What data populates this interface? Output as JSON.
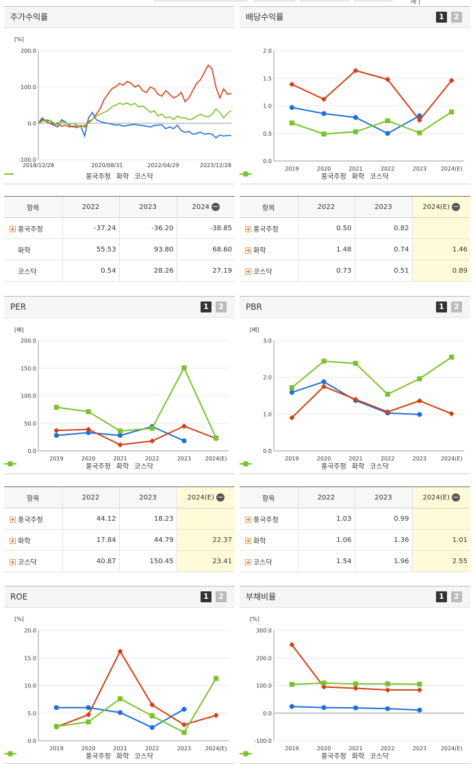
{
  "top_right_text": "페 |",
  "legend_names": [
    "풍국주정",
    "화학",
    "코스닥"
  ],
  "colors": {
    "blue": "#1e6fd9",
    "red": "#d33f12",
    "green": "#7ac22c"
  },
  "panels": {
    "stock_return": {
      "title": "주가수익률"
    },
    "dividend": {
      "title": "배당수익률",
      "btn1": "1",
      "btn2": "2"
    },
    "per": {
      "title": "PER",
      "btn1": "1",
      "btn2": "2"
    },
    "pbr": {
      "title": "PBR",
      "btn1": "1",
      "btn2": "2"
    },
    "roe": {
      "title": "ROE",
      "btn1": "1",
      "btn2": "2"
    },
    "debt": {
      "title": "부채비율",
      "btn1": "1",
      "btn2": "2"
    }
  },
  "tables": {
    "stock_return": {
      "header": [
        "항목",
        "2022",
        "2023",
        "2024"
      ],
      "rows": [
        {
          "name": "풍국주정",
          "plus": true,
          "values": [
            "-37.24",
            "-36.20",
            "-38.85"
          ]
        },
        {
          "name": "화학",
          "plus": false,
          "values": [
            "55.53",
            "93.80",
            "68.60"
          ]
        },
        {
          "name": "코스닥",
          "plus": false,
          "values": [
            "0.54",
            "28.26",
            "27.19"
          ]
        }
      ]
    },
    "dividend": {
      "header": [
        "항목",
        "2022",
        "2023",
        "2024(E)"
      ],
      "rows": [
        {
          "name": "풍국주정",
          "plus": true,
          "values": [
            "0.50",
            "0.82",
            ""
          ]
        },
        {
          "name": "화학",
          "plus": true,
          "values": [
            "1.48",
            "0.74",
            "1.46"
          ]
        },
        {
          "name": "코스닥",
          "plus": true,
          "values": [
            "0.73",
            "0.51",
            "0.89"
          ]
        }
      ]
    },
    "per": {
      "header": [
        "항목",
        "2022",
        "2023",
        "2024(E)"
      ],
      "rows": [
        {
          "name": "풍국주정",
          "plus": true,
          "values": [
            "44.12",
            "18.23",
            ""
          ]
        },
        {
          "name": "화학",
          "plus": true,
          "values": [
            "17.84",
            "44.79",
            "22.37"
          ]
        },
        {
          "name": "코스닥",
          "plus": true,
          "values": [
            "40.87",
            "150.45",
            "23.41"
          ]
        }
      ]
    },
    "pbr": {
      "header": [
        "항목",
        "2022",
        "2023",
        "2024(E)"
      ],
      "rows": [
        {
          "name": "풍국주정",
          "plus": true,
          "values": [
            "1.03",
            "0.99",
            ""
          ]
        },
        {
          "name": "화학",
          "plus": true,
          "values": [
            "1.06",
            "1.36",
            "1.01"
          ]
        },
        {
          "name": "코스닥",
          "plus": true,
          "values": [
            "1.54",
            "1.96",
            "2.55"
          ]
        }
      ]
    }
  },
  "chart_data": [
    {
      "id": "stock_return",
      "type": "line",
      "title": "주가수익률",
      "unit": "[%]",
      "ylim": [
        -100,
        200
      ],
      "yticks": [
        "200.0",
        "100.0",
        "0.0",
        "-100.0"
      ],
      "x_labels": [
        "2018/12/28",
        "2020/08/31",
        "2022/04/29",
        "2023/12/28"
      ],
      "x_range_index": [
        0,
        100
      ],
      "series": [
        {
          "name": "풍국주정",
          "color": "blue",
          "x": [
            0,
            2,
            4,
            6,
            8,
            10,
            12,
            14,
            16,
            18,
            20,
            22,
            24,
            26,
            28,
            30,
            32,
            34,
            36,
            38,
            40,
            42,
            44,
            46,
            48,
            50,
            52,
            54,
            56,
            58,
            60,
            62,
            64,
            66,
            68,
            70,
            72,
            74,
            76,
            78,
            80,
            82,
            84,
            86,
            88,
            90,
            92,
            94,
            96,
            98,
            100
          ],
          "y": [
            0,
            15,
            5,
            8,
            -5,
            -10,
            10,
            4,
            -5,
            -10,
            -6,
            -8,
            -35,
            15,
            30,
            10,
            5,
            2,
            0,
            -2,
            -5,
            -4,
            -8,
            -6,
            -4,
            -3,
            -5,
            -6,
            -8,
            -10,
            -6,
            -5,
            -4,
            -15,
            -10,
            -15,
            -5,
            -20,
            -25,
            -22,
            -30,
            -28,
            -24,
            -30,
            -28,
            -30,
            -40,
            -32,
            -35,
            -33,
            -34
          ]
        },
        {
          "name": "화학",
          "color": "red",
          "x": [
            0,
            2,
            4,
            6,
            8,
            10,
            12,
            14,
            16,
            18,
            20,
            22,
            24,
            26,
            28,
            30,
            32,
            34,
            36,
            38,
            40,
            42,
            44,
            46,
            48,
            50,
            52,
            54,
            56,
            58,
            60,
            62,
            64,
            66,
            68,
            70,
            72,
            74,
            76,
            78,
            80,
            82,
            84,
            86,
            88,
            90,
            92,
            94,
            96,
            98,
            100
          ],
          "y": [
            0,
            10,
            5,
            0,
            -5,
            2,
            -8,
            -5,
            -10,
            -8,
            -12,
            -6,
            -10,
            5,
            10,
            25,
            40,
            65,
            80,
            95,
            100,
            110,
            105,
            115,
            110,
            100,
            105,
            90,
            85,
            100,
            95,
            80,
            75,
            90,
            80,
            70,
            75,
            85,
            60,
            70,
            90,
            110,
            120,
            140,
            160,
            150,
            100,
            70,
            95,
            80,
            82
          ]
        },
        {
          "name": "코스닥",
          "color": "green",
          "x": [
            0,
            2,
            4,
            6,
            8,
            10,
            12,
            14,
            16,
            18,
            20,
            22,
            24,
            26,
            28,
            30,
            32,
            34,
            36,
            38,
            40,
            42,
            44,
            46,
            48,
            50,
            52,
            54,
            56,
            58,
            60,
            62,
            64,
            66,
            68,
            70,
            72,
            74,
            76,
            78,
            80,
            82,
            84,
            86,
            88,
            90,
            92,
            94,
            96,
            98,
            100
          ],
          "y": [
            0,
            5,
            10,
            8,
            2,
            -5,
            5,
            2,
            -2,
            0,
            -5,
            -10,
            -5,
            0,
            10,
            20,
            25,
            30,
            35,
            45,
            50,
            55,
            52,
            56,
            50,
            55,
            45,
            48,
            40,
            30,
            35,
            20,
            25,
            15,
            18,
            10,
            20,
            15,
            15,
            10,
            12,
            20,
            25,
            20,
            18,
            25,
            40,
            30,
            15,
            28,
            35
          ]
        }
      ]
    },
    {
      "id": "dividend",
      "type": "line",
      "title": "배당수익률",
      "ylim": [
        0,
        2
      ],
      "yticks": [
        "2.0",
        "1.5",
        "1.0",
        "0.5",
        "0.0"
      ],
      "categories": [
        "2019",
        "2020",
        "2021",
        "2022",
        "2023",
        "2024(E)"
      ],
      "series": [
        {
          "name": "풍국주정",
          "color": "blue",
          "values": [
            0.97,
            0.86,
            0.79,
            0.5,
            0.82,
            null
          ]
        },
        {
          "name": "화학",
          "color": "red",
          "values": [
            1.39,
            1.12,
            1.64,
            1.48,
            0.74,
            1.46
          ]
        },
        {
          "name": "코스닥",
          "color": "green",
          "values": [
            0.69,
            0.49,
            0.53,
            0.73,
            0.51,
            0.89
          ]
        }
      ]
    },
    {
      "id": "per",
      "type": "line",
      "title": "PER",
      "unit": "[배]",
      "ylim": [
        0,
        200
      ],
      "yticks": [
        "200.0",
        "150.0",
        "100.0",
        "50.0",
        "0.0"
      ],
      "categories": [
        "2019",
        "2020",
        "2021",
        "2022",
        "2023",
        "2024(E)"
      ],
      "series": [
        {
          "name": "풍국주정",
          "color": "blue",
          "values": [
            28,
            33,
            28,
            44.12,
            18.23,
            null
          ]
        },
        {
          "name": "화학",
          "color": "red",
          "values": [
            37,
            39,
            11,
            17.84,
            44.79,
            22.37
          ]
        },
        {
          "name": "코스닥",
          "color": "green",
          "values": [
            79,
            71,
            36,
            40.87,
            150.45,
            23.41
          ]
        }
      ]
    },
    {
      "id": "pbr",
      "type": "line",
      "title": "PBR",
      "unit": "[배]",
      "ylim": [
        0,
        3
      ],
      "yticks": [
        "3.0",
        "2.0",
        "1.0",
        "0.0"
      ],
      "categories": [
        "2019",
        "2020",
        "2021",
        "2022",
        "2023",
        "2024(E)"
      ],
      "series": [
        {
          "name": "풍국주정",
          "color": "blue",
          "values": [
            1.59,
            1.88,
            1.37,
            1.03,
            0.99,
            null
          ]
        },
        {
          "name": "화학",
          "color": "red",
          "values": [
            0.9,
            1.75,
            1.4,
            1.06,
            1.36,
            1.01
          ]
        },
        {
          "name": "코스닥",
          "color": "green",
          "values": [
            1.72,
            2.44,
            2.38,
            1.54,
            1.96,
            2.55
          ]
        }
      ]
    },
    {
      "id": "roe",
      "type": "line",
      "title": "ROE",
      "unit": "[%]",
      "ylim": [
        0,
        20
      ],
      "yticks": [
        "20.0",
        "15.0",
        "10.0",
        "5.0",
        "0.0"
      ],
      "categories": [
        "2019",
        "2020",
        "2021",
        "2022",
        "2023",
        "2024(E)"
      ],
      "series": [
        {
          "name": "풍국주정",
          "color": "blue",
          "values": [
            6.0,
            6.0,
            5.1,
            2.4,
            5.7,
            null
          ]
        },
        {
          "name": "화학",
          "color": "red",
          "values": [
            2.5,
            4.7,
            16.2,
            6.5,
            2.9,
            4.6
          ]
        },
        {
          "name": "코스닥",
          "color": "green",
          "values": [
            2.6,
            3.4,
            7.6,
            4.5,
            1.5,
            11.3
          ]
        }
      ]
    },
    {
      "id": "debt",
      "type": "line",
      "title": "부채비율",
      "unit": "[%]",
      "ylim": [
        -100,
        300
      ],
      "yticks": [
        "300.0",
        "200.0",
        "100.0",
        "0.0",
        "-100.0"
      ],
      "categories": [
        "2019",
        "2020",
        "2021",
        "2022",
        "2023",
        "2024(E)"
      ],
      "series": [
        {
          "name": "풍국주정",
          "color": "blue",
          "values": [
            24,
            20,
            19,
            16,
            11,
            null
          ]
        },
        {
          "name": "화학",
          "color": "red",
          "values": [
            248,
            95,
            90,
            84,
            84,
            null
          ]
        },
        {
          "name": "코스닥",
          "color": "green",
          "values": [
            104,
            109,
            106,
            106,
            105,
            null
          ]
        }
      ]
    }
  ]
}
